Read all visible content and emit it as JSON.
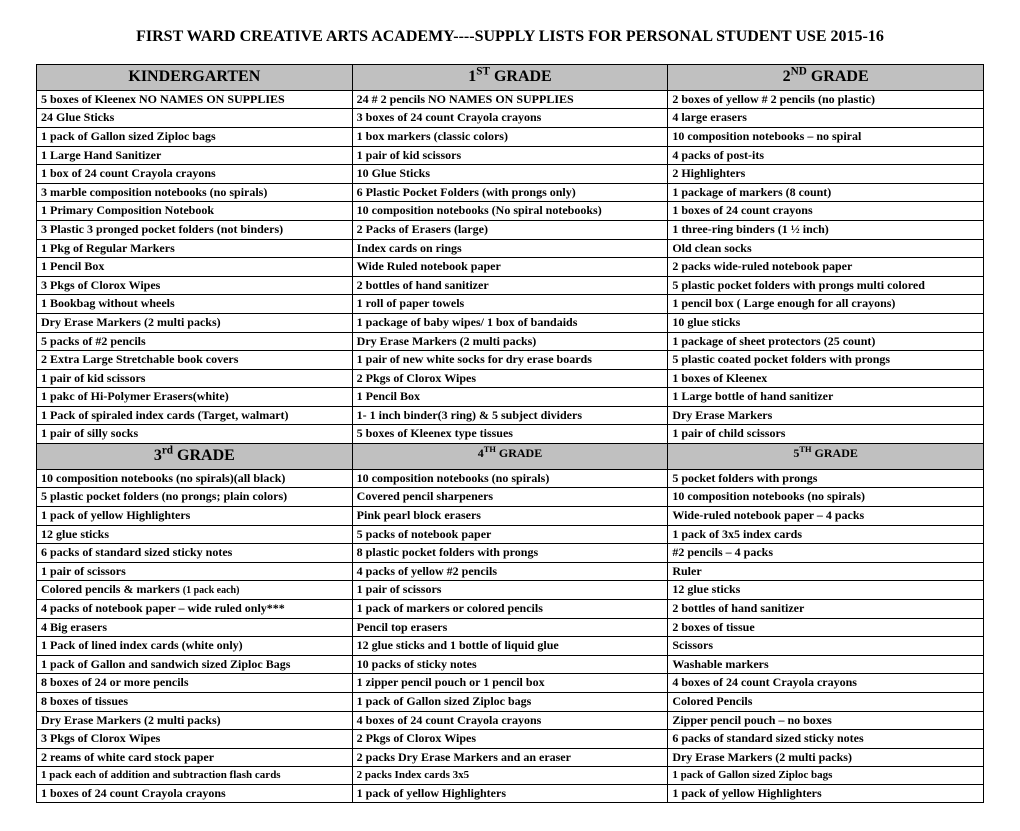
{
  "title": "FIRST WARD CREATIVE ARTS ACADEMY----SUPPLY LISTS FOR PERSONAL STUDENT USE 2015-16",
  "headers1": {
    "c1": "KINDERGARTEN",
    "c2a": "1",
    "c2sup": "ST",
    "c2b": " GRADE",
    "c3a": "2",
    "c3sup": "ND",
    "c3b": " GRADE"
  },
  "headers2": {
    "c1a": "3",
    "c1sup": "rd",
    "c1b": " GRADE",
    "c2a": "4",
    "c2sup": "TH",
    "c2b": " GRADE",
    "c3a": "5",
    "c3sup": "TH",
    "c3b": " GRADE"
  },
  "s1": {
    "r0c1": "5 boxes of Kleenex  NO NAMES ON SUPPLIES",
    "r0c2": "24 # 2 pencils          NO NAMES ON SUPPLIES",
    "r0c3": "2 boxes of yellow # 2 pencils (no plastic)",
    "r1c1": "24 Glue Sticks",
    "r1c2": "3 boxes of 24 count Crayola crayons",
    "r1c3": "4 large erasers",
    "r2c1": "1 pack of Gallon sized Ziploc bags",
    "r2c2": "1 box  markers (classic colors)",
    "r2c3": "10 composition notebooks – no spiral",
    "r3c1": "1 Large Hand Sanitizer",
    "r3c2": "1 pair of kid scissors",
    "r3c3": "4 packs of post-its",
    "r4c1": "1 box of 24 count Crayola crayons",
    "r4c2": "10 Glue Sticks",
    "r4c3": "2 Highlighters",
    "r5c1": "3 marble composition notebooks (no spirals)",
    "r5c2": "6 Plastic  Pocket Folders (with prongs only)",
    "r5c3": "1 package of markers (8 count)",
    "r6c1": "1 Primary Composition Notebook",
    "r6c2": "10 composition notebooks (No spiral notebooks)",
    "r6c3": "1 boxes of 24 count crayons",
    "r7c1": "3 Plastic 3 pronged pocket folders (not binders)",
    "r7c2": "2 Packs of Erasers (large)",
    "r7c3": "1 three-ring binders  (1 ½  inch)",
    "r8c1": "1 Pkg of Regular Markers",
    "r8c2": "Index cards on rings",
    "r8c3": "Old clean socks",
    "r9c1": "1 Pencil Box",
    "r9c2": "Wide Ruled notebook paper",
    "r9c3": "2 packs wide-ruled notebook paper",
    "r10c1": "3 Pkgs of Clorox Wipes",
    "r10c2": "2 bottles of hand sanitizer",
    "r10c3": "5 plastic pocket folders with prongs multi colored",
    "r11c1": "1 Bookbag without wheels",
    "r11c2": "1 roll of paper towels",
    "r11c3": " 1 pencil box ( Large enough for all crayons)",
    "r12c1": "Dry Erase Markers (2 multi packs)",
    "r12c2": "1 package of baby wipes/ 1 box of bandaids",
    "r12c3": "10 glue sticks",
    "r13c1": "5 packs of #2 pencils",
    "r13c2": "Dry Erase Markers (2 multi packs)",
    "r13c3": "1 package of sheet protectors (25 count)",
    "r14c1": "2 Extra Large Stretchable book covers",
    "r14c2": "1 pair of new white socks for dry erase boards",
    "r14c3": "5 plastic coated pocket folders with prongs",
    "r15c1": "1 pair of kid scissors",
    "r15c2": "2 Pkgs of Clorox Wipes",
    "r15c3": "1 boxes of Kleenex",
    "r16c1": "1 pakc of Hi-Polymer Erasers(white)",
    "r16c2": "1 Pencil Box",
    "r16c3": "1 Large bottle of hand sanitizer",
    "r17c1": "1 Pack of spiraled index cards (Target, walmart)",
    "r17c2": "1- 1 inch binder(3 ring) & 5 subject dividers",
    "r17c3": "Dry Erase Markers",
    "r18c1": "1 pair of silly socks",
    "r18c2": "5 boxes of Kleenex type tissues",
    "r18c3": "1 pair of child scissors"
  },
  "s2": {
    "r0c1": "10 composition notebooks (no spirals)(all black)",
    "r0c2": "10 composition notebooks (no spirals)",
    "r0c3": " 5 pocket folders with prongs",
    "r1c1": "5 plastic pocket folders (no prongs; plain colors)",
    "r1c2": "Covered pencil sharpeners",
    "r1c3": "10 composition notebooks (no spirals)",
    "r2c1": "1 pack of  yellow Highlighters",
    "r2c2": "Pink pearl block erasers",
    "r2c3": "Wide-ruled notebook paper – 4 packs",
    "r3c1": "12 glue sticks",
    "r3c2": "5 packs of notebook paper",
    "r3c3": " 1 pack of 3x5 index cards",
    "r4c1": "6 packs of standard sized sticky notes",
    "r4c2": "8 plastic pocket folders with prongs",
    "r4c3": "#2 pencils – 4 packs",
    "r5c1": "1 pair of scissors",
    "r5c2": "4 packs of yellow #2 pencils",
    "r5c3": "Ruler",
    "r6c1a": "Colored pencils & markers ",
    "r6c1b": "(1 pack each)",
    "r6c2": "1 pair of scissors",
    "r6c3": "12 glue sticks",
    "r7c1": "4 packs of notebook paper – wide ruled only***",
    "r7c2": "1 pack of  markers or colored pencils",
    "r7c3": "2 bottles of hand sanitizer",
    "r8c1": "4 Big erasers",
    "r8c2": "Pencil top erasers",
    "r8c3": "2 boxes of tissue",
    "r9c1": "1 Pack of lined index cards (white only)",
    "r9c2": "12 glue sticks and 1 bottle of liquid glue",
    "r9c3": "Scissors",
    "r10c1": "1 pack of Gallon  and sandwich sized Ziploc Bags",
    "r10c2": "10 packs of sticky notes",
    "r10c3": "Washable markers",
    "r11c1": "8 boxes  of  24 or more pencils",
    "r11c2": "1 zipper pencil pouch or 1 pencil box",
    "r11c3": "4 boxes of 24 count Crayola crayons",
    "r12c1": "8 boxes of tissues",
    "r12c2": "1 pack of Gallon sized Ziploc bags",
    "r12c3": "Colored Pencils",
    "r13c1": "Dry Erase Markers (2 multi packs)",
    "r13c2": "4 boxes of 24 count Crayola crayons",
    "r13c3": "Zipper pencil pouch – no boxes",
    "r14c1": "3 Pkgs of Clorox Wipes",
    "r14c2": "2 Pkgs of Clorox Wipes",
    "r14c3": "6 packs of standard sized sticky notes",
    "r15c1": "2 reams of white card stock paper",
    "r15c2": "2 packs Dry Erase Markers and an eraser",
    "r15c3": "Dry Erase Markers (2 multi packs)",
    "r16c1": "1 pack each of addition and subtraction flash cards",
    "r16c2": "2 packs Index cards 3x5",
    "r16c3": "1 pack of Gallon sized Ziploc bags",
    "r17c1": "1 boxes of 24 count Crayola crayons",
    "r17c2": "1 pack of yellow Highlighters",
    "r17c3": "1 pack of yellow Highlighters"
  }
}
